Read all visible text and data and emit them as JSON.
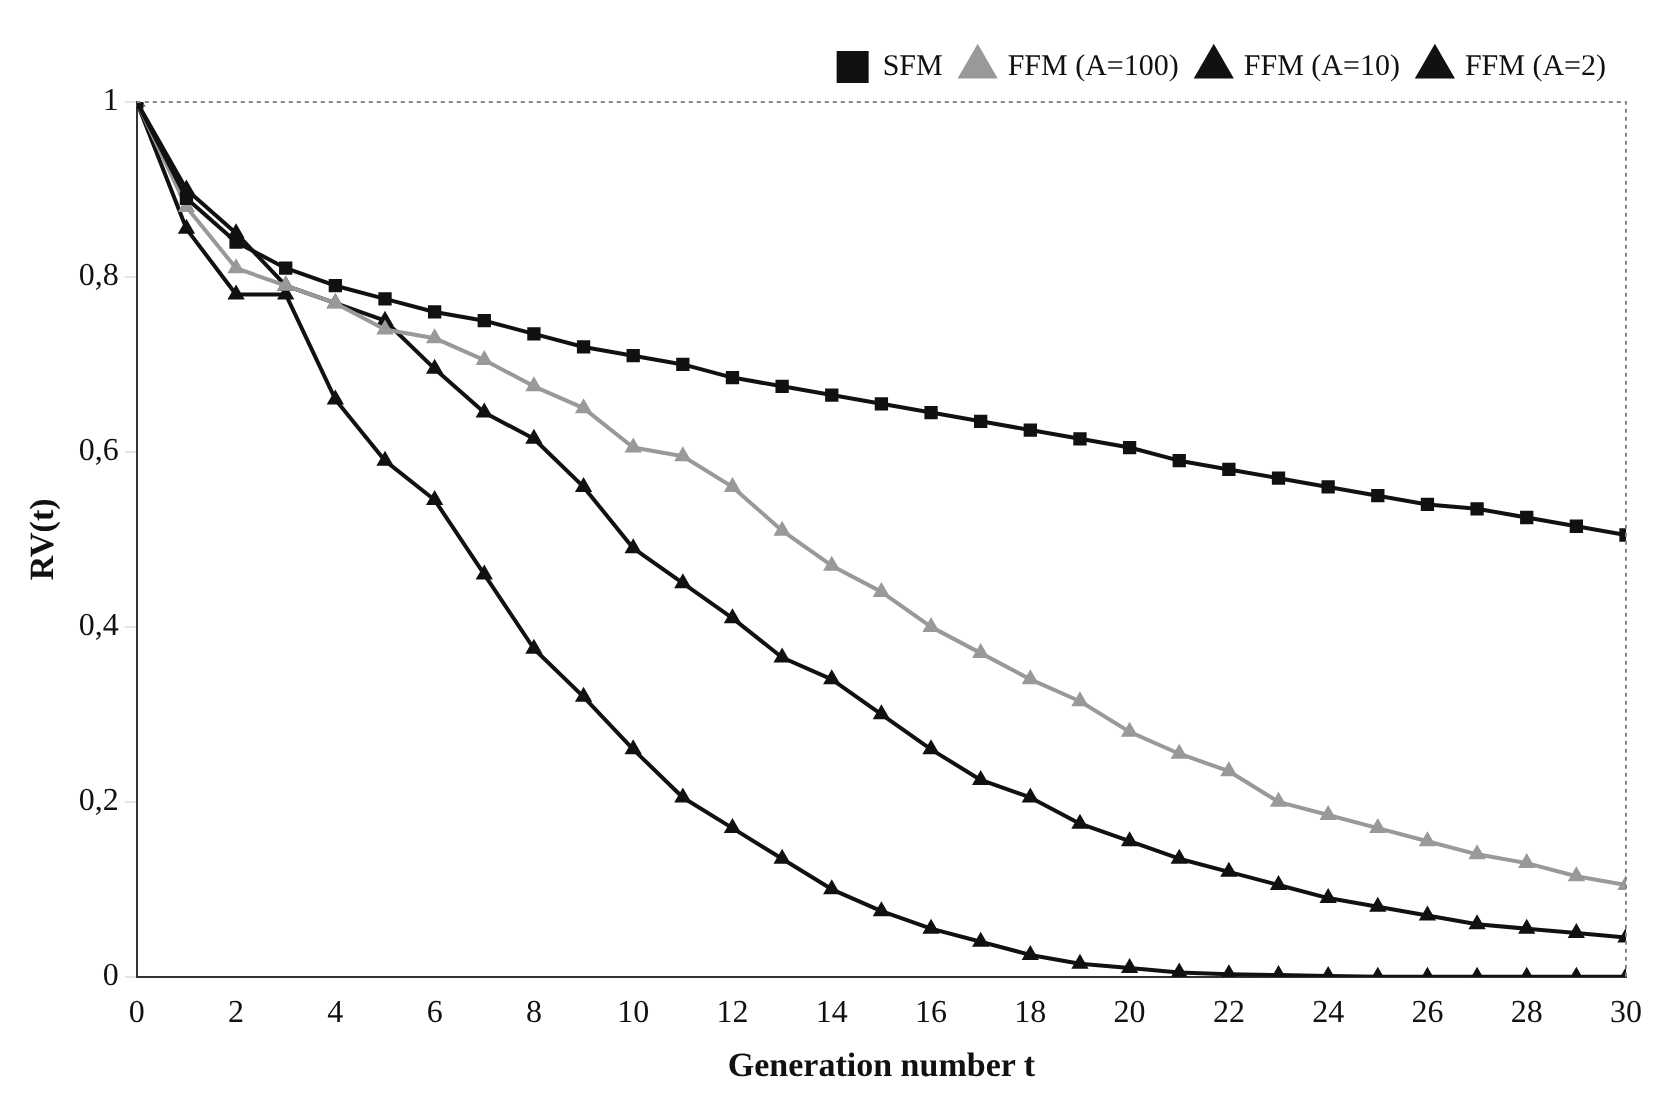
{
  "chart_data": {
    "type": "line",
    "xlabel": "Generation number t",
    "ylabel": "RV(t)",
    "x": [
      0,
      1,
      2,
      3,
      4,
      5,
      6,
      7,
      8,
      9,
      10,
      11,
      12,
      13,
      14,
      15,
      16,
      17,
      18,
      19,
      20,
      21,
      22,
      23,
      24,
      25,
      26,
      27,
      28,
      29,
      30
    ],
    "xlim": [
      0,
      30
    ],
    "xticks": [
      0,
      2,
      4,
      6,
      8,
      10,
      12,
      14,
      16,
      18,
      20,
      22,
      24,
      26,
      28,
      30
    ],
    "ylim": [
      0,
      1
    ],
    "yticks": [
      0,
      {
        "value": 0.2,
        "label": "0,2"
      },
      {
        "value": 0.4,
        "label": "0,4"
      },
      {
        "value": 0.6,
        "label": "0,6"
      },
      {
        "value": 0.8,
        "label": "0,8"
      },
      1
    ],
    "grid": false,
    "legend": "top right",
    "line_style": "solid",
    "series": [
      {
        "name": "SFM",
        "color": "#111111",
        "marker": "square",
        "values": [
          1,
          0.89,
          0.84,
          0.81,
          0.79,
          0.775,
          0.76,
          0.75,
          0.735,
          0.72,
          0.71,
          0.7,
          0.685,
          0.675,
          0.665,
          0.655,
          0.645,
          0.635,
          0.625,
          0.615,
          0.605,
          0.59,
          0.58,
          0.57,
          0.56,
          0.55,
          0.54,
          0.535,
          0.525,
          0.515,
          0.505
        ]
      },
      {
        "name": "FFM (A=100)",
        "color": "#999999",
        "marker": "triangle",
        "values": [
          1,
          0.88,
          0.81,
          0.79,
          0.77,
          0.74,
          0.73,
          0.705,
          0.675,
          0.65,
          0.605,
          0.595,
          0.56,
          0.51,
          0.47,
          0.44,
          0.4,
          0.37,
          0.34,
          0.315,
          0.28,
          0.255,
          0.235,
          0.2,
          0.185,
          0.17,
          0.155,
          0.14,
          0.13,
          0.115,
          0.105
        ]
      },
      {
        "name": "FFM (A=10)",
        "color": "#111111",
        "marker": "triangle",
        "values": [
          1,
          0.9,
          0.85,
          0.79,
          0.77,
          0.75,
          0.695,
          0.645,
          0.615,
          0.56,
          0.49,
          0.45,
          0.41,
          0.365,
          0.34,
          0.3,
          0.26,
          0.225,
          0.205,
          0.175,
          0.155,
          0.135,
          0.12,
          0.105,
          0.09,
          0.08,
          0.07,
          0.06,
          0.055,
          0.05,
          0.045
        ]
      },
      {
        "name": "FFM (A=2)",
        "color": "#111111",
        "marker": "triangle",
        "values": [
          1,
          0.855,
          0.78,
          0.78,
          0.66,
          0.59,
          0.545,
          0.46,
          0.375,
          0.32,
          0.26,
          0.205,
          0.17,
          0.135,
          0.1,
          0.075,
          0.055,
          0.04,
          0.025,
          0.015,
          0.01,
          0.005,
          0.003,
          0.002,
          0.001,
          0,
          0,
          0,
          0,
          0,
          0
        ]
      }
    ]
  }
}
